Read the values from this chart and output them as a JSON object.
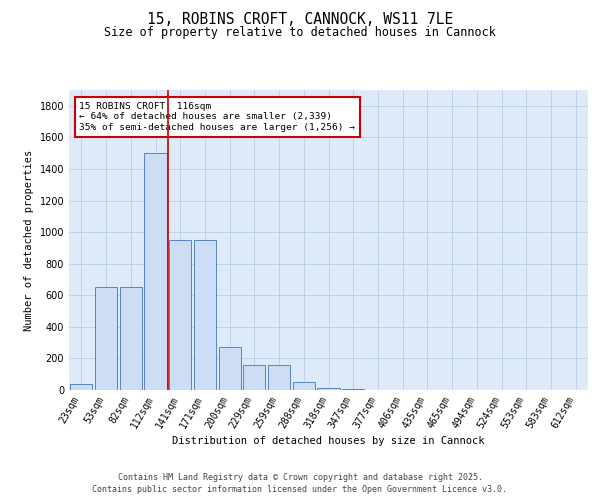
{
  "title_line1": "15, ROBINS CROFT, CANNOCK, WS11 7LE",
  "title_line2": "Size of property relative to detached houses in Cannock",
  "xlabel": "Distribution of detached houses by size in Cannock",
  "ylabel": "Number of detached properties",
  "categories": [
    "23sqm",
    "53sqm",
    "82sqm",
    "112sqm",
    "141sqm",
    "171sqm",
    "200sqm",
    "229sqm",
    "259sqm",
    "288sqm",
    "318sqm",
    "347sqm",
    "377sqm",
    "406sqm",
    "435sqm",
    "465sqm",
    "494sqm",
    "524sqm",
    "553sqm",
    "583sqm",
    "612sqm"
  ],
  "values": [
    40,
    650,
    650,
    1500,
    950,
    950,
    270,
    160,
    160,
    50,
    15,
    5,
    2,
    0,
    0,
    0,
    0,
    0,
    0,
    0,
    0
  ],
  "bar_color": "#ccddf5",
  "bar_edge_color": "#5585c0",
  "grid_color": "#bbcce8",
  "bg_color": "#ddeaf8",
  "red_line_x": 3.5,
  "annotation_text": "15 ROBINS CROFT: 116sqm\n← 64% of detached houses are smaller (2,339)\n35% of semi-detached houses are larger (1,256) →",
  "annotation_box_facecolor": "#ffffff",
  "annotation_box_edgecolor": "#cc0000",
  "footer_line1": "Contains HM Land Registry data © Crown copyright and database right 2025.",
  "footer_line2": "Contains public sector information licensed under the Open Government Licence v3.0.",
  "ylim": [
    0,
    1900
  ],
  "yticks": [
    0,
    200,
    400,
    600,
    800,
    1000,
    1200,
    1400,
    1600,
    1800
  ],
  "title_fontsize": 10.5,
  "subtitle_fontsize": 8.5,
  "axis_label_fontsize": 7.5,
  "tick_fontsize": 7,
  "annotation_fontsize": 6.8,
  "footer_fontsize": 6
}
